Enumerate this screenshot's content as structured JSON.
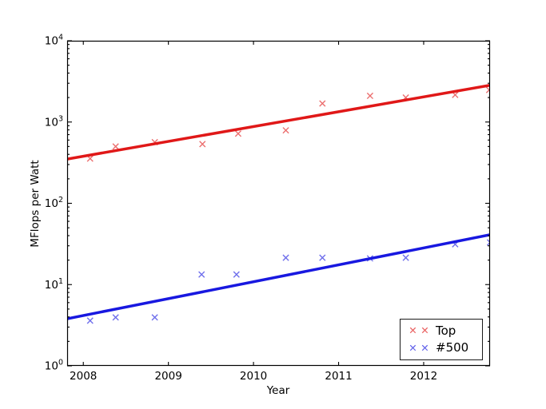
{
  "chart_data": {
    "type": "scatter",
    "title": "",
    "xlabel": "Year",
    "ylabel": "MFlops per Watt",
    "marker_glyph": "✕",
    "xlim": [
      2007.81,
      2012.78
    ],
    "x_ticks": {
      "values": [
        2008,
        2009,
        2010,
        2011,
        2012
      ],
      "labels": [
        "2008",
        "2009",
        "2010",
        "2011",
        "2012"
      ]
    },
    "y_axis": {
      "scale": "log",
      "lim": [
        1,
        10000
      ],
      "tick_exponents": [
        0,
        1,
        2,
        3,
        4
      ],
      "tick_base": "10",
      "minor_multiples": [
        2,
        3,
        4,
        5,
        6,
        7,
        8,
        9
      ]
    },
    "grid": false,
    "legend": {
      "position": "lower-right",
      "markers_per_entry": 2
    },
    "series": [
      {
        "name": "Top",
        "color": "#e01818",
        "marker": "x",
        "points": [
          [
            2008.08,
            355
          ],
          [
            2008.38,
            500
          ],
          [
            2008.84,
            565
          ],
          [
            2009.4,
            535
          ],
          [
            2009.82,
            720
          ],
          [
            2010.38,
            790
          ],
          [
            2010.81,
            1690
          ],
          [
            2011.37,
            2100
          ],
          [
            2011.79,
            2000
          ],
          [
            2012.37,
            2160
          ],
          [
            2012.77,
            2480
          ]
        ],
        "trend_line": {
          "x": [
            2007.81,
            2012.78
          ],
          "y": [
            350,
            2830
          ]
        }
      },
      {
        "name": "#500",
        "color": "#1818e0",
        "marker": "x",
        "points": [
          [
            2008.08,
            3.6
          ],
          [
            2008.38,
            3.95
          ],
          [
            2008.84,
            3.95
          ],
          [
            2009.39,
            13.3
          ],
          [
            2009.8,
            13.3
          ],
          [
            2010.38,
            21.4
          ],
          [
            2010.81,
            21.4
          ],
          [
            2011.37,
            21.0
          ],
          [
            2011.79,
            21.4
          ],
          [
            2012.37,
            31.3
          ],
          [
            2012.78,
            33.0
          ]
        ],
        "trend_line": {
          "x": [
            2007.81,
            2012.78
          ],
          "y": [
            3.8,
            41
          ]
        }
      }
    ]
  }
}
